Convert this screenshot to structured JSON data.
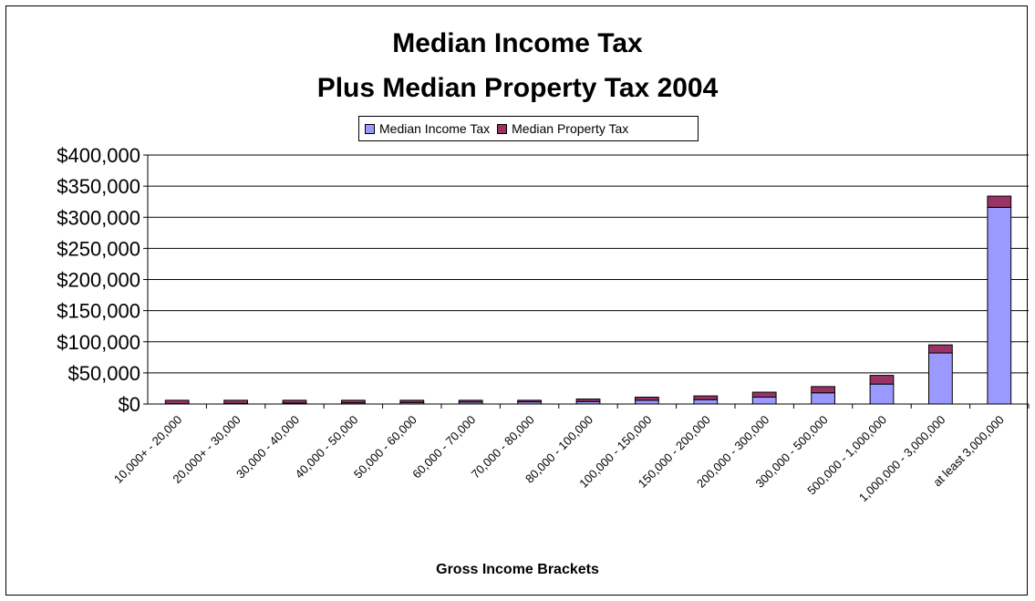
{
  "chart_data": {
    "type": "bar",
    "stacked": true,
    "title_line1": "Median Income Tax",
    "title_line2": "Plus Median Property Tax 2004",
    "xlabel": "Gross Income Brackets",
    "ylabel": "",
    "ylim": [
      0,
      400000
    ],
    "yticks": [
      "$0",
      "$50,000",
      "$100,000",
      "$150,000",
      "$200,000",
      "$250,000",
      "$300,000",
      "$350,000",
      "$400,000"
    ],
    "ytick_values": [
      0,
      50000,
      100000,
      150000,
      200000,
      250000,
      300000,
      350000,
      400000
    ],
    "grid": true,
    "legend_position": "top-center",
    "categories": [
      "10,000+ - 20,000",
      "20,000+ - 30,000",
      "30,000 - 40,000",
      "40,000 - 50,000",
      "50,000 - 60,000",
      "60,000 - 70,000",
      "70,000 - 80,000",
      "80,000 - 100,000",
      "100,000 - 150,000",
      "150,000 - 200,000",
      "200,000 - 300,000",
      "300,000 - 500,000",
      "500,000 - 1,000,000",
      "1,000,000 - 3,000,000",
      "at least 3,000,000"
    ],
    "series": [
      {
        "name": "Median Income Tax",
        "color": "#9999ff",
        "values": [
          500,
          1000,
          1500,
          2000,
          2500,
          3000,
          3500,
          4000,
          6000,
          7000,
          11000,
          18000,
          32000,
          82000,
          316000
        ]
      },
      {
        "name": "Median Property Tax",
        "color": "#993366",
        "values": [
          5500,
          5000,
          4500,
          4000,
          3500,
          3000,
          2500,
          4000,
          5000,
          6000,
          8000,
          10000,
          14000,
          13000,
          18000
        ]
      }
    ]
  }
}
